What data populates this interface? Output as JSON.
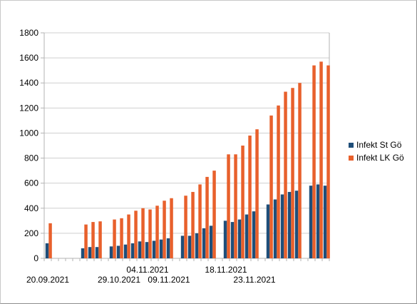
{
  "chart_data": {
    "type": "bar",
    "title": "",
    "xlabel": "",
    "ylabel": "",
    "ylim": [
      0,
      1800
    ],
    "yticks": [
      0,
      200,
      400,
      600,
      800,
      1000,
      1200,
      1400,
      1600,
      1800
    ],
    "grid": true,
    "legend_position": "right",
    "x_tick_labels": [
      {
        "text": "20.09.2021",
        "slot": 0,
        "row": 2
      },
      {
        "text": "29.10.2021",
        "slot": 10,
        "row": 2
      },
      {
        "text": "04.11.2021",
        "slot": 14,
        "row": 1
      },
      {
        "text": "09.11.2021",
        "slot": 17,
        "row": 2
      },
      {
        "text": "18.11.2021",
        "slot": 25,
        "row": 1
      },
      {
        "text": "23.11.2021",
        "slot": 29,
        "row": 2
      }
    ],
    "series": [
      {
        "name": "Infekt St Gö",
        "color": "#1f4e79",
        "values": [
          120,
          null,
          null,
          null,
          null,
          80,
          90,
          90,
          null,
          95,
          100,
          110,
          120,
          135,
          130,
          140,
          150,
          160,
          null,
          180,
          180,
          200,
          240,
          260,
          null,
          300,
          290,
          310,
          350,
          375,
          null,
          430,
          470,
          510,
          530,
          540,
          null,
          580,
          590,
          580
        ]
      },
      {
        "name": "Infekt LK Gö",
        "color": "#e8602c",
        "values": [
          280,
          null,
          null,
          null,
          null,
          270,
          290,
          295,
          null,
          310,
          320,
          350,
          380,
          400,
          390,
          420,
          460,
          480,
          null,
          500,
          530,
          590,
          650,
          700,
          null,
          830,
          830,
          900,
          980,
          1030,
          null,
          1140,
          1220,
          1330,
          1360,
          1400,
          null,
          1540,
          1570,
          1540
        ]
      }
    ]
  }
}
